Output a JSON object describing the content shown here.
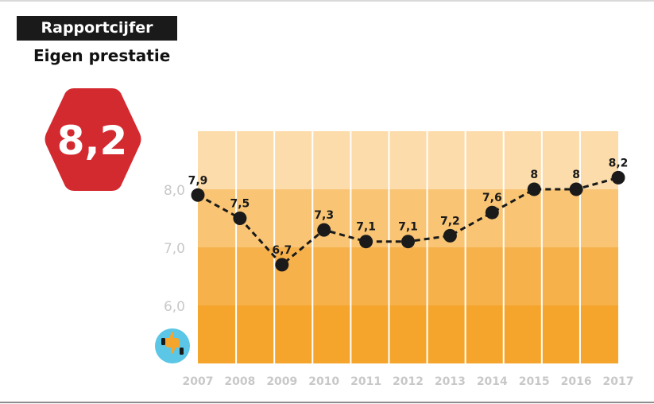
{
  "header": {
    "title": "Rapportcijfer",
    "subtitle": "Eigen prestatie"
  },
  "score": {
    "value": "8,2",
    "color": "#d32a30"
  },
  "chart_data": {
    "type": "line",
    "x": [
      "2007",
      "2008",
      "2009",
      "2010",
      "2011",
      "2012",
      "2013",
      "2014",
      "2015",
      "2016",
      "2017"
    ],
    "values": [
      7.9,
      7.5,
      6.7,
      7.3,
      7.1,
      7.1,
      7.2,
      7.6,
      8.0,
      8.0,
      8.2
    ],
    "data_labels": [
      "7,9",
      "7,5",
      "6,7",
      "7,3",
      "7,1",
      "7,1",
      "7,2",
      "7,6",
      "8",
      "8",
      "8,2"
    ],
    "yticks": [
      {
        "value": 8.0,
        "label": "8,0"
      },
      {
        "value": 7.0,
        "label": "7,0"
      },
      {
        "value": 6.0,
        "label": "6,0"
      }
    ],
    "ylim": [
      5.0,
      9.0
    ],
    "line_style": "dashed",
    "band_colors": [
      "#f5a52c",
      "#f7b14b",
      "#f9c574",
      "#fcdcab"
    ],
    "grid": "vertical white lines"
  },
  "icon": {
    "name": "thumbs-up-down-icon",
    "color": "#5bc6e6"
  }
}
